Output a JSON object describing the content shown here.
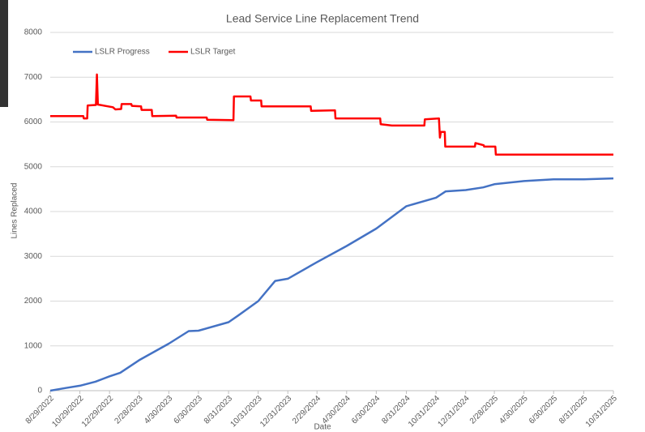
{
  "chart_data": {
    "type": "line",
    "title": "Lead Service Line Replacement Trend",
    "x_label": "Date",
    "y_label": "Lines Replaced",
    "ylim": [
      0,
      8000
    ],
    "yticks": [
      0,
      1000,
      2000,
      3000,
      4000,
      5000,
      6000,
      7000,
      8000
    ],
    "xlim": [
      "8/29/2022",
      "10/31/2025"
    ],
    "xticks": [
      "8/29/2022",
      "10/29/2022",
      "12/29/2022",
      "2/28/2023",
      "4/30/2023",
      "6/30/2023",
      "8/31/2023",
      "10/31/2023",
      "12/31/2023",
      "2/29/2024",
      "4/30/2024",
      "6/30/2024",
      "8/31/2024",
      "10/31/2024",
      "12/31/2024",
      "2/28/2025",
      "4/30/2025",
      "6/30/2025",
      "8/31/2025",
      "10/31/2025"
    ],
    "grid": true,
    "legend": "top-left",
    "series": [
      {
        "name": "LSLR Progress",
        "color": "#4472c4",
        "x": [
          "8/29/2022",
          "9/30/2022",
          "10/29/2022",
          "11/30/2022",
          "12/29/2022",
          "1/20/2023",
          "2/28/2023",
          "4/30/2023",
          "6/10/2023",
          "6/30/2023",
          "8/31/2023",
          "9/20/2023",
          "10/31/2023",
          "12/5/2023",
          "12/31/2023",
          "2/29/2024",
          "4/30/2024",
          "6/30/2024",
          "8/31/2024",
          "10/31/2024",
          "11/20/2024",
          "12/31/2024",
          "2/5/2025",
          "2/28/2025",
          "4/30/2025",
          "6/30/2025",
          "8/31/2025",
          "10/31/2025"
        ],
        "values": [
          0,
          60,
          110,
          200,
          320,
          400,
          680,
          1050,
          1330,
          1340,
          1530,
          1680,
          2000,
          2450,
          2500,
          2870,
          3230,
          3620,
          4120,
          4310,
          4450,
          4480,
          4540,
          4610,
          4680,
          4720,
          4720,
          4740
        ]
      },
      {
        "name": "LSLR Target",
        "color": "#ff0000",
        "x": [
          "8/29/2022",
          "11/5/2022",
          "11/6/2022",
          "11/13/2022",
          "11/14/2022",
          "12/1/2022",
          "12/3/2022",
          "12/5/2022",
          "1/5/2023",
          "1/10/2023",
          "1/22/2023",
          "1/23/2023",
          "2/12/2023",
          "2/13/2023",
          "3/4/2023",
          "3/5/2023",
          "3/26/2023",
          "3/27/2023",
          "5/15/2023",
          "5/16/2023",
          "7/17/2023",
          "7/18/2023",
          "9/10/2023",
          "9/11/2023",
          "10/15/2023",
          "10/16/2023",
          "11/6/2023",
          "11/7/2023",
          "2/16/2024",
          "2/17/2024",
          "4/6/2024",
          "4/7/2024",
          "7/8/2024",
          "7/9/2024",
          "8/1/2024",
          "10/7/2024",
          "10/8/2024",
          "11/6/2024",
          "11/8/2024",
          "11/10/2024",
          "11/18/2024",
          "11/19/2024",
          "1/19/2025",
          "1/20/2025",
          "2/6/2025",
          "2/7/2025",
          "3/2/2025",
          "3/3/2025",
          "10/31/2025"
        ],
        "values": [
          6130,
          6130,
          6080,
          6080,
          6370,
          6380,
          7060,
          6390,
          6330,
          6280,
          6290,
          6400,
          6400,
          6360,
          6350,
          6270,
          6270,
          6130,
          6140,
          6100,
          6100,
          6050,
          6040,
          6570,
          6570,
          6480,
          6480,
          6350,
          6350,
          6250,
          6260,
          6080,
          6080,
          5950,
          5920,
          5920,
          6060,
          6080,
          5650,
          5780,
          5780,
          5450,
          5450,
          5530,
          5480,
          5450,
          5450,
          5270,
          5270
        ]
      }
    ]
  }
}
